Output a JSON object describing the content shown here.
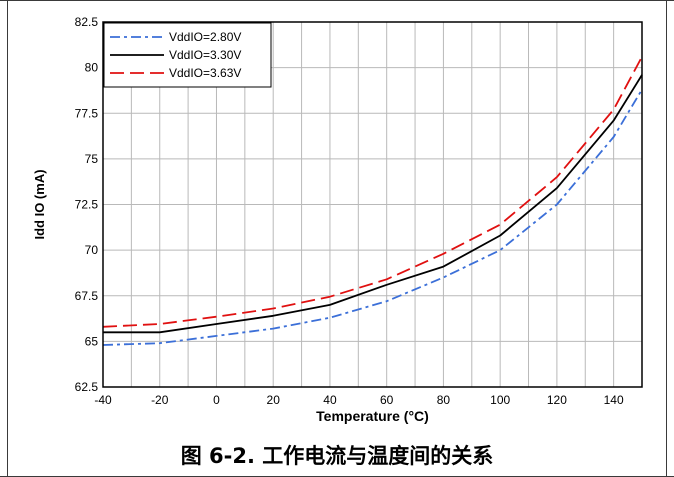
{
  "caption": "图 6-2. 工作电流与温度间的关系",
  "chart_data": {
    "type": "line",
    "title": "",
    "xlabel": "Temperature (°C)",
    "ylabel": "Idd IO (mA)",
    "xlim": [
      -40,
      150
    ],
    "ylim": [
      62.5,
      82.5
    ],
    "x_ticks": [
      -40,
      -20,
      0,
      20,
      40,
      60,
      80,
      100,
      120,
      140
    ],
    "x_tick_labels": [
      "-40",
      "-20",
      "0",
      "20",
      "40",
      "60",
      "80",
      "100",
      "120",
      "140"
    ],
    "y_ticks": [
      62.5,
      65,
      67.5,
      70,
      72.5,
      75,
      77.5,
      80,
      82.5
    ],
    "y_tick_labels": [
      "62.5",
      "65",
      "67.5",
      "70",
      "72.5",
      "75",
      "77.5",
      "80",
      "82.5"
    ],
    "grid": true,
    "legend_position": "top-left",
    "x": [
      -40,
      -20,
      0,
      20,
      40,
      60,
      80,
      100,
      120,
      140,
      150
    ],
    "series": [
      {
        "name": "VddIO=2.80V",
        "color": "#3b6fd8",
        "dash": "dash-dot",
        "values": [
          64.8,
          64.9,
          65.3,
          65.7,
          66.3,
          67.2,
          68.5,
          70.0,
          72.5,
          76.2,
          78.8
        ]
      },
      {
        "name": "VddIO=3.30V",
        "color": "#000000",
        "dash": "solid",
        "values": [
          65.5,
          65.5,
          65.95,
          66.4,
          67.0,
          68.1,
          69.1,
          70.8,
          73.4,
          77.1,
          79.6
        ]
      },
      {
        "name": "VddIO=3.63V",
        "color": "#e01010",
        "dash": "dash",
        "values": [
          65.8,
          65.95,
          66.35,
          66.8,
          67.45,
          68.4,
          69.8,
          71.4,
          74.0,
          77.7,
          80.6
        ]
      }
    ]
  }
}
